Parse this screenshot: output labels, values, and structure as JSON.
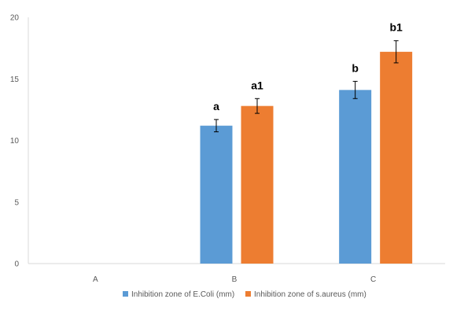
{
  "chart_data": {
    "type": "bar",
    "categories": [
      "A",
      "B",
      "C"
    ],
    "series": [
      {
        "name": "Inhibition zone of E.Coli (mm)",
        "color": "#5B9BD5",
        "values": [
          0,
          11.2,
          14.1
        ],
        "errors": [
          0,
          0.5,
          0.7
        ],
        "labels": [
          "",
          "a",
          "b"
        ]
      },
      {
        "name": "Inhibition zone of s.aureus (mm)",
        "color": "#ED7D31",
        "values": [
          0,
          12.8,
          17.2
        ],
        "errors": [
          0,
          0.6,
          0.9
        ],
        "labels": [
          "",
          "a1",
          "b1"
        ]
      }
    ],
    "yticks": [
      0,
      5,
      10,
      15,
      20
    ],
    "ylim": [
      0,
      20
    ],
    "legend_position": "bottom",
    "grid": false
  }
}
